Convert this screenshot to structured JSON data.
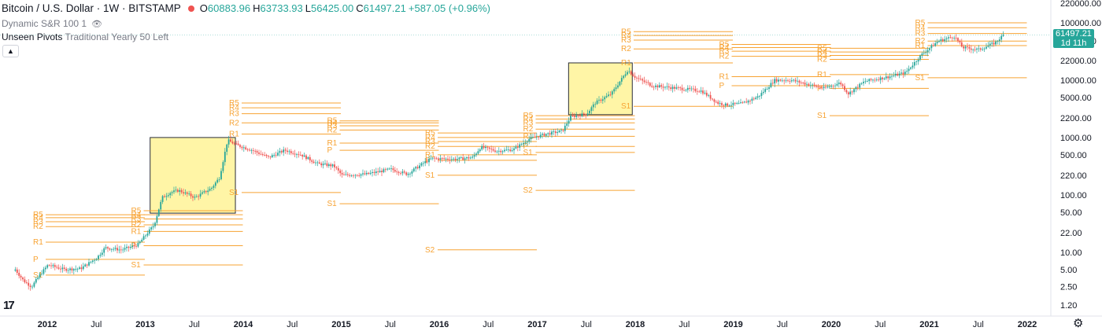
{
  "header": {
    "symbol": "Bitcoin / U.S. Dollar · 1W · BITSTAMP",
    "ohlc": [
      {
        "label": "O",
        "value": "60883.96"
      },
      {
        "label": "H",
        "value": "63733.93"
      },
      {
        "label": "L",
        "value": "56425.00"
      },
      {
        "label": "C",
        "value": "61497.21"
      }
    ],
    "change": "+587.05 (+0.96%)",
    "indicator1": "Dynamic S&R 100 1",
    "indicator2_name": "Unseen Pivots",
    "indicator2_args": "Traditional Yearly 50 Left",
    "collapse_icon": "chevron-up-icon",
    "eye_icon": "eye-crossed-icon"
  },
  "price_badge": {
    "price": "61497.21",
    "countdown": "1d 11h"
  },
  "chart_data": {
    "type": "candlestick",
    "scale": "log",
    "y_axis_labels": [
      "220000.00",
      "100000.00",
      "48000.00",
      "22000.00",
      "10000.00",
      "5000.00",
      "2200.00",
      "1000.00",
      "500.00",
      "220.00",
      "100.00",
      "50.00",
      "22.00",
      "10.00",
      "5.00",
      "2.50",
      "1.20"
    ],
    "x_axis_labels": [
      "2012",
      "Jul",
      "2013",
      "Jul",
      "2014",
      "Jul",
      "2015",
      "Jul",
      "2016",
      "Jul",
      "2017",
      "Jul",
      "2018",
      "Jul",
      "2019",
      "Jul",
      "2020",
      "Jul",
      "2021",
      "Jul",
      "2022"
    ],
    "colors": {
      "up": "#26a69a",
      "down": "#ef5350",
      "pivot": "#f7a333",
      "box": "#fff59d"
    },
    "pivot_years": [
      {
        "year": "2012",
        "levels": [
          [
            "R5",
            45
          ],
          [
            "R4",
            40
          ],
          [
            "R3",
            34
          ],
          [
            "R2",
            28
          ],
          [
            "R1",
            15
          ],
          [
            "P",
            7.5
          ],
          [
            "S1",
            4
          ]
        ]
      },
      {
        "year": "2013",
        "levels": [
          [
            "R5",
            53
          ],
          [
            "R4",
            45
          ],
          [
            "R3",
            38
          ],
          [
            "R2",
            30
          ],
          [
            "R1",
            23
          ],
          [
            "P",
            13
          ],
          [
            "S1",
            6
          ]
        ]
      },
      {
        "year": "2014",
        "levels": [
          [
            "R5",
            4000
          ],
          [
            "R4",
            3300
          ],
          [
            "R3",
            2600
          ],
          [
            "R2",
            1800
          ],
          [
            "R1",
            1150
          ],
          [
            "S1",
            110
          ]
        ]
      },
      {
        "year": "2015",
        "levels": [
          [
            "R5",
            1950
          ],
          [
            "R4",
            1800
          ],
          [
            "R3",
            1600
          ],
          [
            "R2",
            1350
          ],
          [
            "R1",
            800
          ],
          [
            "P",
            600
          ],
          [
            "S1",
            70
          ]
        ]
      },
      {
        "year": "2016",
        "levels": [
          [
            "R5",
            1200
          ],
          [
            "R4",
            1000
          ],
          [
            "R3",
            850
          ],
          [
            "R2",
            700
          ],
          [
            "R1",
            500
          ],
          [
            "P",
            400
          ],
          [
            "S1",
            220
          ],
          [
            "S2",
            11
          ]
        ]
      },
      {
        "year": "2017",
        "levels": [
          [
            "R5",
            2400
          ],
          [
            "R4",
            2100
          ],
          [
            "R3",
            1800
          ],
          [
            "R2",
            1400
          ],
          [
            "R1",
            1050
          ],
          [
            "P",
            700
          ],
          [
            "S1",
            550
          ],
          [
            "S2",
            120
          ]
        ]
      },
      {
        "year": "2018",
        "levels": [
          [
            "R5",
            70000
          ],
          [
            "R4",
            60000
          ],
          [
            "R3",
            50000
          ],
          [
            "R2",
            35000
          ],
          [
            "R1",
            20000
          ],
          [
            "S1",
            3500
          ]
        ]
      },
      {
        "year": "2019",
        "levels": [
          [
            "R5",
            42000
          ],
          [
            "R4",
            37000
          ],
          [
            "R3",
            32000
          ],
          [
            "R2",
            26000
          ],
          [
            "R1",
            11500
          ],
          [
            "P",
            8000
          ]
        ]
      },
      {
        "year": "2020",
        "levels": [
          [
            "R5",
            36000
          ],
          [
            "R4",
            31000
          ],
          [
            "R3",
            27000
          ],
          [
            "R2",
            23000
          ],
          [
            "R1",
            12500
          ],
          [
            "P",
            7200
          ],
          [
            "S1",
            2400
          ]
        ]
      },
      {
        "year": "2021",
        "levels": [
          [
            "R5",
            100000
          ],
          [
            "R4",
            82000
          ],
          [
            "R3",
            65000
          ],
          [
            "R2",
            48000
          ],
          [
            "R1",
            40000
          ],
          [
            "S1",
            11000
          ]
        ]
      }
    ],
    "series_close": [
      [
        "2011-09",
        5.0
      ],
      [
        "2011-10",
        3.2
      ],
      [
        "2011-11",
        2.5
      ],
      [
        "2011-12",
        4.0
      ],
      [
        "2012-01",
        6.0
      ],
      [
        "2012-03",
        5.0
      ],
      [
        "2012-05",
        5.2
      ],
      [
        "2012-07",
        8.0
      ],
      [
        "2012-08",
        12.0
      ],
      [
        "2012-10",
        11.0
      ],
      [
        "2012-12",
        13.5
      ],
      [
        "2013-02",
        30
      ],
      [
        "2013-03",
        90
      ],
      [
        "2013-04",
        110
      ],
      [
        "2013-05",
        120
      ],
      [
        "2013-07",
        90
      ],
      [
        "2013-09",
        130
      ],
      [
        "2013-10",
        200
      ],
      [
        "2013-11",
        900
      ],
      [
        "2013-12",
        750
      ],
      [
        "2014-02",
        600
      ],
      [
        "2014-04",
        450
      ],
      [
        "2014-06",
        600
      ],
      [
        "2014-08",
        500
      ],
      [
        "2014-10",
        350
      ],
      [
        "2014-12",
        320
      ],
      [
        "2015-01",
        220
      ],
      [
        "2015-04",
        230
      ],
      [
        "2015-07",
        280
      ],
      [
        "2015-09",
        230
      ],
      [
        "2015-11",
        360
      ],
      [
        "2015-12",
        430
      ],
      [
        "2016-03",
        420
      ],
      [
        "2016-05",
        450
      ],
      [
        "2016-06",
        680
      ],
      [
        "2016-08",
        580
      ],
      [
        "2016-10",
        620
      ],
      [
        "2016-12",
        960
      ],
      [
        "2017-02",
        1150
      ],
      [
        "2017-04",
        1300
      ],
      [
        "2017-05",
        2300
      ],
      [
        "2017-07",
        2600
      ],
      [
        "2017-08",
        4000
      ],
      [
        "2017-10",
        5800
      ],
      [
        "2017-12",
        15000
      ],
      [
        "2018-01",
        11000
      ],
      [
        "2018-03",
        8000
      ],
      [
        "2018-05",
        7500
      ],
      [
        "2018-07",
        7000
      ],
      [
        "2018-09",
        6500
      ],
      [
        "2018-11",
        4000
      ],
      [
        "2018-12",
        3700
      ],
      [
        "2019-02",
        3900
      ],
      [
        "2019-04",
        5200
      ],
      [
        "2019-06",
        10000
      ],
      [
        "2019-08",
        10000
      ],
      [
        "2019-10",
        8500
      ],
      [
        "2019-12",
        7200
      ],
      [
        "2020-02",
        9000
      ],
      [
        "2020-03",
        5800
      ],
      [
        "2020-05",
        9500
      ],
      [
        "2020-08",
        11500
      ],
      [
        "2020-10",
        13500
      ],
      [
        "2020-12",
        28000
      ],
      [
        "2021-02",
        48000
      ],
      [
        "2021-04",
        58000
      ],
      [
        "2021-05",
        37000
      ],
      [
        "2021-07",
        34000
      ],
      [
        "2021-09",
        45000
      ],
      [
        "2021-10",
        61497
      ]
    ]
  }
}
